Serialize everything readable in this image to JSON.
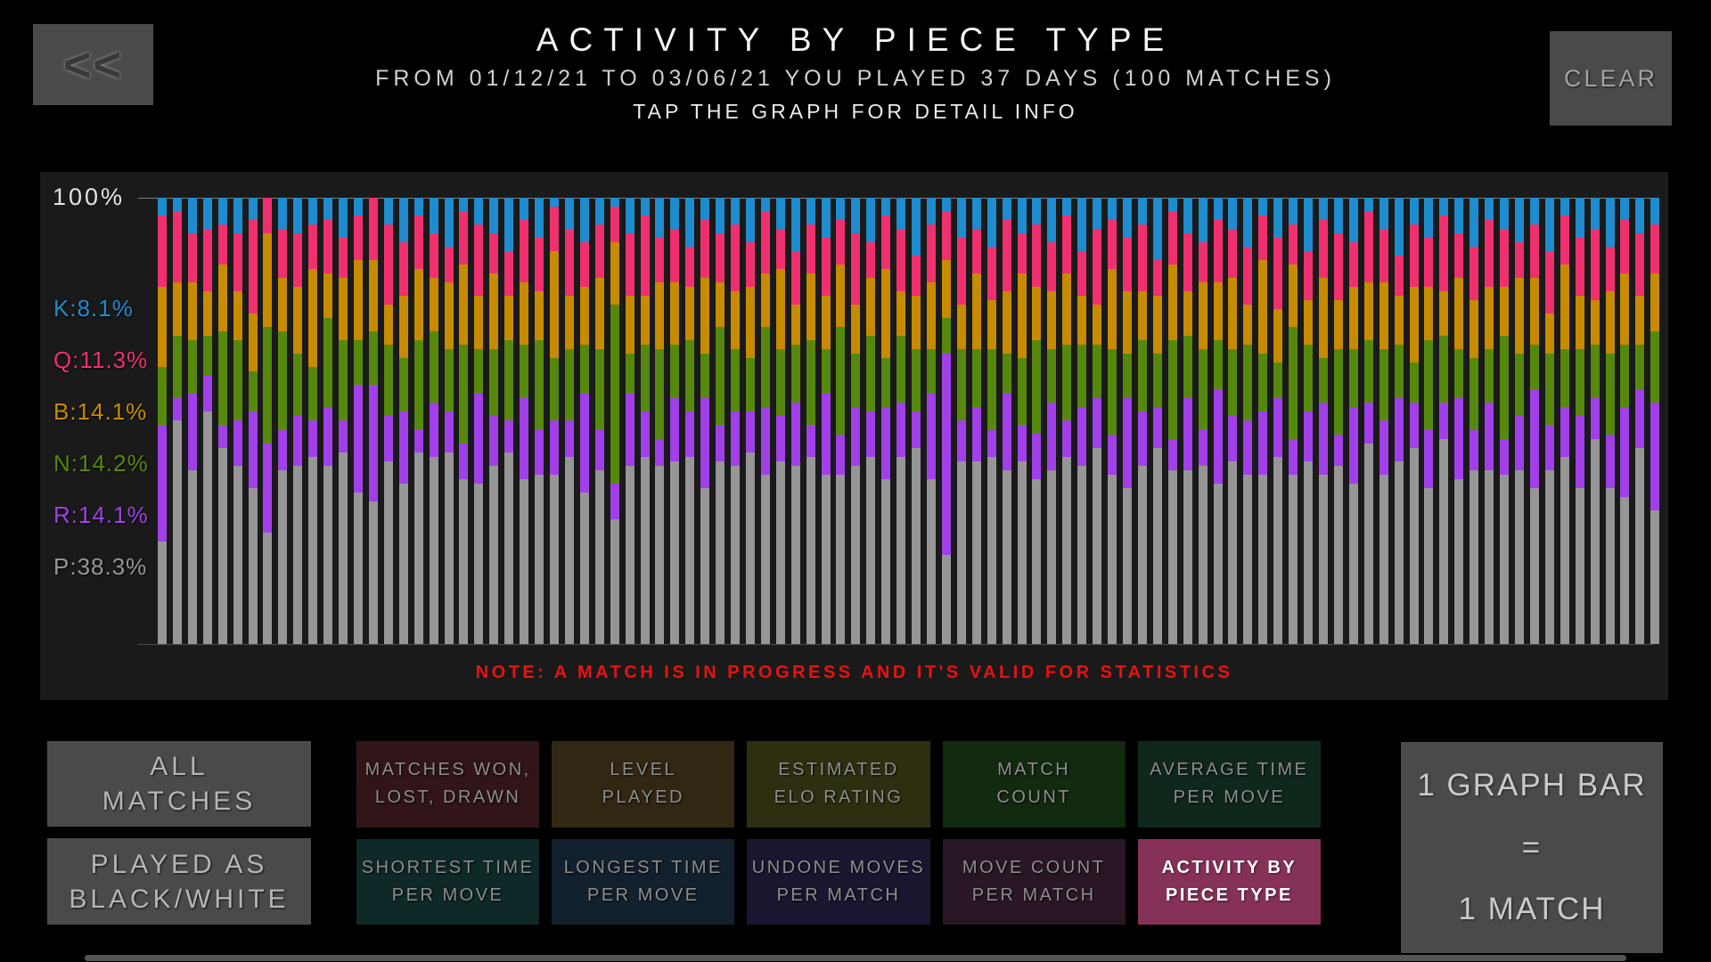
{
  "header": {
    "back_label": "<<",
    "title": "ACTIVITY BY PIECE TYPE",
    "subtitle": "FROM 01/12/21 TO 03/06/21 YOU PLAYED 37 DAYS (100 MATCHES)",
    "hint": "TAP THE GRAPH FOR DETAIL INFO",
    "clear_label": "CLEAR"
  },
  "colors": {
    "page_bg": "#000000",
    "panel_bg": "#1a1a1a",
    "gray_button_bg": "#4a4a4a",
    "selected_button_bg": "#853158",
    "note_red": "#e81212"
  },
  "chart_data": {
    "type": "bar",
    "stacked_percent": true,
    "title": "ACTIVITY BY PIECE TYPE",
    "unit": "1 graph bar = 1 match",
    "x_count": 100,
    "ylim": [
      0,
      100
    ],
    "y_top_label": "100%",
    "grid": "top and bottom line only",
    "legend_position": "left",
    "series_order_top_to_bottom": [
      "K",
      "Q",
      "B",
      "N",
      "R",
      "P"
    ],
    "legend": [
      {
        "key": "K",
        "piece": "King",
        "label": "K:8.1%",
        "value_pct": 8.1,
        "color": "#1e8cce"
      },
      {
        "key": "Q",
        "piece": "Queen",
        "label": "Q:11.3%",
        "value_pct": 11.3,
        "color": "#f0306e"
      },
      {
        "key": "B",
        "piece": "Bishop",
        "label": "B:14.1%",
        "value_pct": 14.1,
        "color": "#c78b00"
      },
      {
        "key": "N",
        "piece": "Knight",
        "label": "N:14.2%",
        "value_pct": 14.2,
        "color": "#55880c"
      },
      {
        "key": "R",
        "piece": "Rook",
        "label": "R:14.1%",
        "value_pct": 14.1,
        "color": "#a140e8"
      },
      {
        "key": "P",
        "piece": "Pawn",
        "label": "P:38.3%",
        "value_pct": 38.3,
        "color": "#969696"
      }
    ],
    "note": "NOTE: A MATCH IS IN PROGRESS AND IT'S VALID FOR STATISTICS",
    "bars": [
      [
        4,
        16,
        18,
        13,
        26,
        23
      ],
      [
        3,
        16,
        12,
        14,
        5,
        50
      ],
      [
        8,
        11,
        13,
        12,
        17,
        39
      ],
      [
        7,
        14,
        10,
        9,
        8,
        52
      ],
      [
        6,
        9,
        15,
        21,
        5,
        44
      ],
      [
        8,
        13,
        11,
        18,
        10,
        40
      ],
      [
        5,
        21,
        13,
        9,
        17,
        35
      ],
      [
        0,
        8,
        21,
        26,
        20,
        25
      ],
      [
        7,
        11,
        12,
        22,
        9,
        39
      ],
      [
        8,
        12,
        15,
        14,
        11,
        40
      ],
      [
        6,
        10,
        22,
        12,
        8,
        42
      ],
      [
        5,
        12,
        10,
        20,
        13,
        40
      ],
      [
        9,
        9,
        14,
        18,
        7,
        43
      ],
      [
        4,
        10,
        18,
        10,
        24,
        34
      ],
      [
        0,
        14,
        16,
        12,
        26,
        32
      ],
      [
        6,
        18,
        9,
        16,
        10,
        41
      ],
      [
        10,
        12,
        14,
        12,
        16,
        36
      ],
      [
        4,
        12,
        16,
        20,
        5,
        43
      ],
      [
        8,
        10,
        12,
        16,
        12,
        42
      ],
      [
        11,
        8,
        15,
        14,
        9,
        43
      ],
      [
        3,
        12,
        18,
        22,
        8,
        37
      ],
      [
        6,
        16,
        12,
        10,
        20,
        36
      ],
      [
        8,
        9,
        17,
        15,
        11,
        40
      ],
      [
        12,
        10,
        10,
        18,
        7,
        43
      ],
      [
        5,
        14,
        14,
        12,
        18,
        37
      ],
      [
        9,
        12,
        11,
        20,
        10,
        38
      ],
      [
        2,
        10,
        24,
        14,
        12,
        38
      ],
      [
        7,
        15,
        12,
        16,
        8,
        42
      ],
      [
        10,
        10,
        13,
        11,
        22,
        34
      ],
      [
        6,
        12,
        16,
        18,
        9,
        39
      ],
      [
        2,
        8,
        14,
        40,
        8,
        28
      ],
      [
        8,
        14,
        13,
        9,
        16,
        40
      ],
      [
        4,
        18,
        11,
        15,
        10,
        42
      ],
      [
        9,
        10,
        15,
        20,
        6,
        40
      ],
      [
        7,
        12,
        14,
        12,
        14,
        41
      ],
      [
        11,
        9,
        12,
        16,
        10,
        42
      ],
      [
        5,
        13,
        17,
        10,
        20,
        35
      ],
      [
        8,
        11,
        10,
        22,
        8,
        41
      ],
      [
        6,
        15,
        13,
        14,
        12,
        40
      ],
      [
        10,
        10,
        16,
        12,
        9,
        43
      ],
      [
        3,
        14,
        12,
        18,
        15,
        38
      ],
      [
        7,
        9,
        18,
        15,
        10,
        41
      ],
      [
        12,
        12,
        9,
        13,
        14,
        40
      ],
      [
        6,
        11,
        15,
        19,
        7,
        42
      ],
      [
        9,
        13,
        12,
        10,
        18,
        38
      ],
      [
        5,
        10,
        14,
        24,
        9,
        38
      ],
      [
        8,
        16,
        11,
        12,
        13,
        40
      ],
      [
        10,
        8,
        13,
        17,
        10,
        42
      ],
      [
        4,
        12,
        20,
        11,
        16,
        37
      ],
      [
        7,
        14,
        10,
        15,
        12,
        42
      ],
      [
        13,
        9,
        12,
        14,
        8,
        44
      ],
      [
        6,
        13,
        15,
        10,
        19,
        37
      ],
      [
        3,
        11,
        13,
        8,
        45,
        20
      ],
      [
        9,
        15,
        10,
        16,
        9,
        41
      ],
      [
        7,
        10,
        17,
        13,
        12,
        41
      ],
      [
        11,
        12,
        11,
        18,
        6,
        42
      ],
      [
        5,
        16,
        14,
        9,
        17,
        39
      ],
      [
        8,
        9,
        19,
        15,
        8,
        41
      ],
      [
        6,
        14,
        12,
        21,
        10,
        37
      ],
      [
        10,
        11,
        13,
        12,
        15,
        39
      ],
      [
        4,
        13,
        16,
        17,
        8,
        42
      ],
      [
        12,
        10,
        11,
        14,
        13,
        40
      ],
      [
        7,
        17,
        9,
        12,
        11,
        44
      ],
      [
        5,
        11,
        18,
        19,
        9,
        38
      ],
      [
        9,
        12,
        14,
        10,
        20,
        35
      ],
      [
        6,
        15,
        11,
        16,
        12,
        40
      ],
      [
        14,
        8,
        13,
        12,
        9,
        44
      ],
      [
        3,
        12,
        17,
        22,
        7,
        39
      ],
      [
        8,
        13,
        10,
        14,
        16,
        39
      ],
      [
        10,
        9,
        15,
        18,
        8,
        40
      ],
      [
        5,
        14,
        13,
        11,
        21,
        36
      ],
      [
        7,
        11,
        16,
        15,
        10,
        41
      ],
      [
        11,
        13,
        9,
        17,
        12,
        38
      ],
      [
        4,
        10,
        21,
        13,
        14,
        38
      ],
      [
        9,
        16,
        12,
        8,
        13,
        42
      ],
      [
        6,
        9,
        14,
        25,
        8,
        38
      ],
      [
        12,
        11,
        10,
        15,
        11,
        41
      ],
      [
        5,
        13,
        18,
        10,
        16,
        38
      ],
      [
        8,
        15,
        11,
        19,
        7,
        40
      ],
      [
        10,
        10,
        14,
        13,
        17,
        36
      ],
      [
        3,
        16,
        13,
        14,
        9,
        45
      ],
      [
        7,
        12,
        15,
        16,
        12,
        38
      ],
      [
        13,
        9,
        11,
        12,
        14,
        41
      ],
      [
        6,
        14,
        17,
        9,
        10,
        44
      ],
      [
        9,
        11,
        12,
        20,
        13,
        35
      ],
      [
        4,
        17,
        10,
        15,
        8,
        46
      ],
      [
        8,
        10,
        16,
        11,
        18,
        37
      ],
      [
        11,
        12,
        13,
        16,
        9,
        39
      ],
      [
        5,
        15,
        14,
        12,
        15,
        39
      ],
      [
        7,
        13,
        11,
        23,
        8,
        38
      ],
      [
        10,
        8,
        17,
        14,
        12,
        39
      ],
      [
        6,
        12,
        15,
        10,
        22,
        35
      ],
      [
        12,
        14,
        9,
        16,
        10,
        39
      ],
      [
        4,
        11,
        19,
        13,
        11,
        42
      ],
      [
        9,
        13,
        12,
        15,
        16,
        35
      ],
      [
        7,
        16,
        10,
        12,
        9,
        46
      ],
      [
        11,
        10,
        14,
        18,
        12,
        35
      ],
      [
        5,
        12,
        16,
        14,
        20,
        33
      ],
      [
        8,
        14,
        11,
        10,
        13,
        44
      ],
      [
        6,
        11,
        13,
        16,
        24,
        30
      ]
    ]
  },
  "footer": {
    "filters": [
      {
        "lines": [
          "ALL",
          "MATCHES"
        ]
      },
      {
        "lines": [
          "PLAYED AS",
          "BLACK/WHITE"
        ]
      }
    ],
    "stat_buttons": [
      {
        "lines": [
          "MATCHES WON,",
          "LOST, DRAWN"
        ],
        "bg": "#321518",
        "selected": false
      },
      {
        "lines": [
          "LEVEL",
          "PLAYED"
        ],
        "bg": "#322713",
        "selected": false
      },
      {
        "lines": [
          "ESTIMATED",
          "ELO RATING"
        ],
        "bg": "#2e2f10",
        "selected": false
      },
      {
        "lines": [
          "MATCH",
          "COUNT"
        ],
        "bg": "#122a0f",
        "selected": false
      },
      {
        "lines": [
          "AVERAGE TIME",
          "PER MOVE"
        ],
        "bg": "#0f281c",
        "selected": false
      },
      {
        "lines": [
          "SHORTEST TIME",
          "PER MOVE"
        ],
        "bg": "#0e2927",
        "selected": false
      },
      {
        "lines": [
          "LONGEST TIME",
          "PER MOVE"
        ],
        "bg": "#13202d",
        "selected": false
      },
      {
        "lines": [
          "UNDONE MOVES",
          "PER MATCH"
        ],
        "bg": "#1a1630",
        "selected": false
      },
      {
        "lines": [
          "MOVE COUNT",
          "PER MATCH"
        ],
        "bg": "#2a1726",
        "selected": false
      },
      {
        "lines": [
          "ACTIVITY BY",
          "PIECE TYPE"
        ],
        "bg": "#853158",
        "selected": true
      }
    ]
  },
  "legend_box": {
    "line1": "1 GRAPH BAR",
    "line2": "=",
    "line3": "1 MATCH"
  }
}
